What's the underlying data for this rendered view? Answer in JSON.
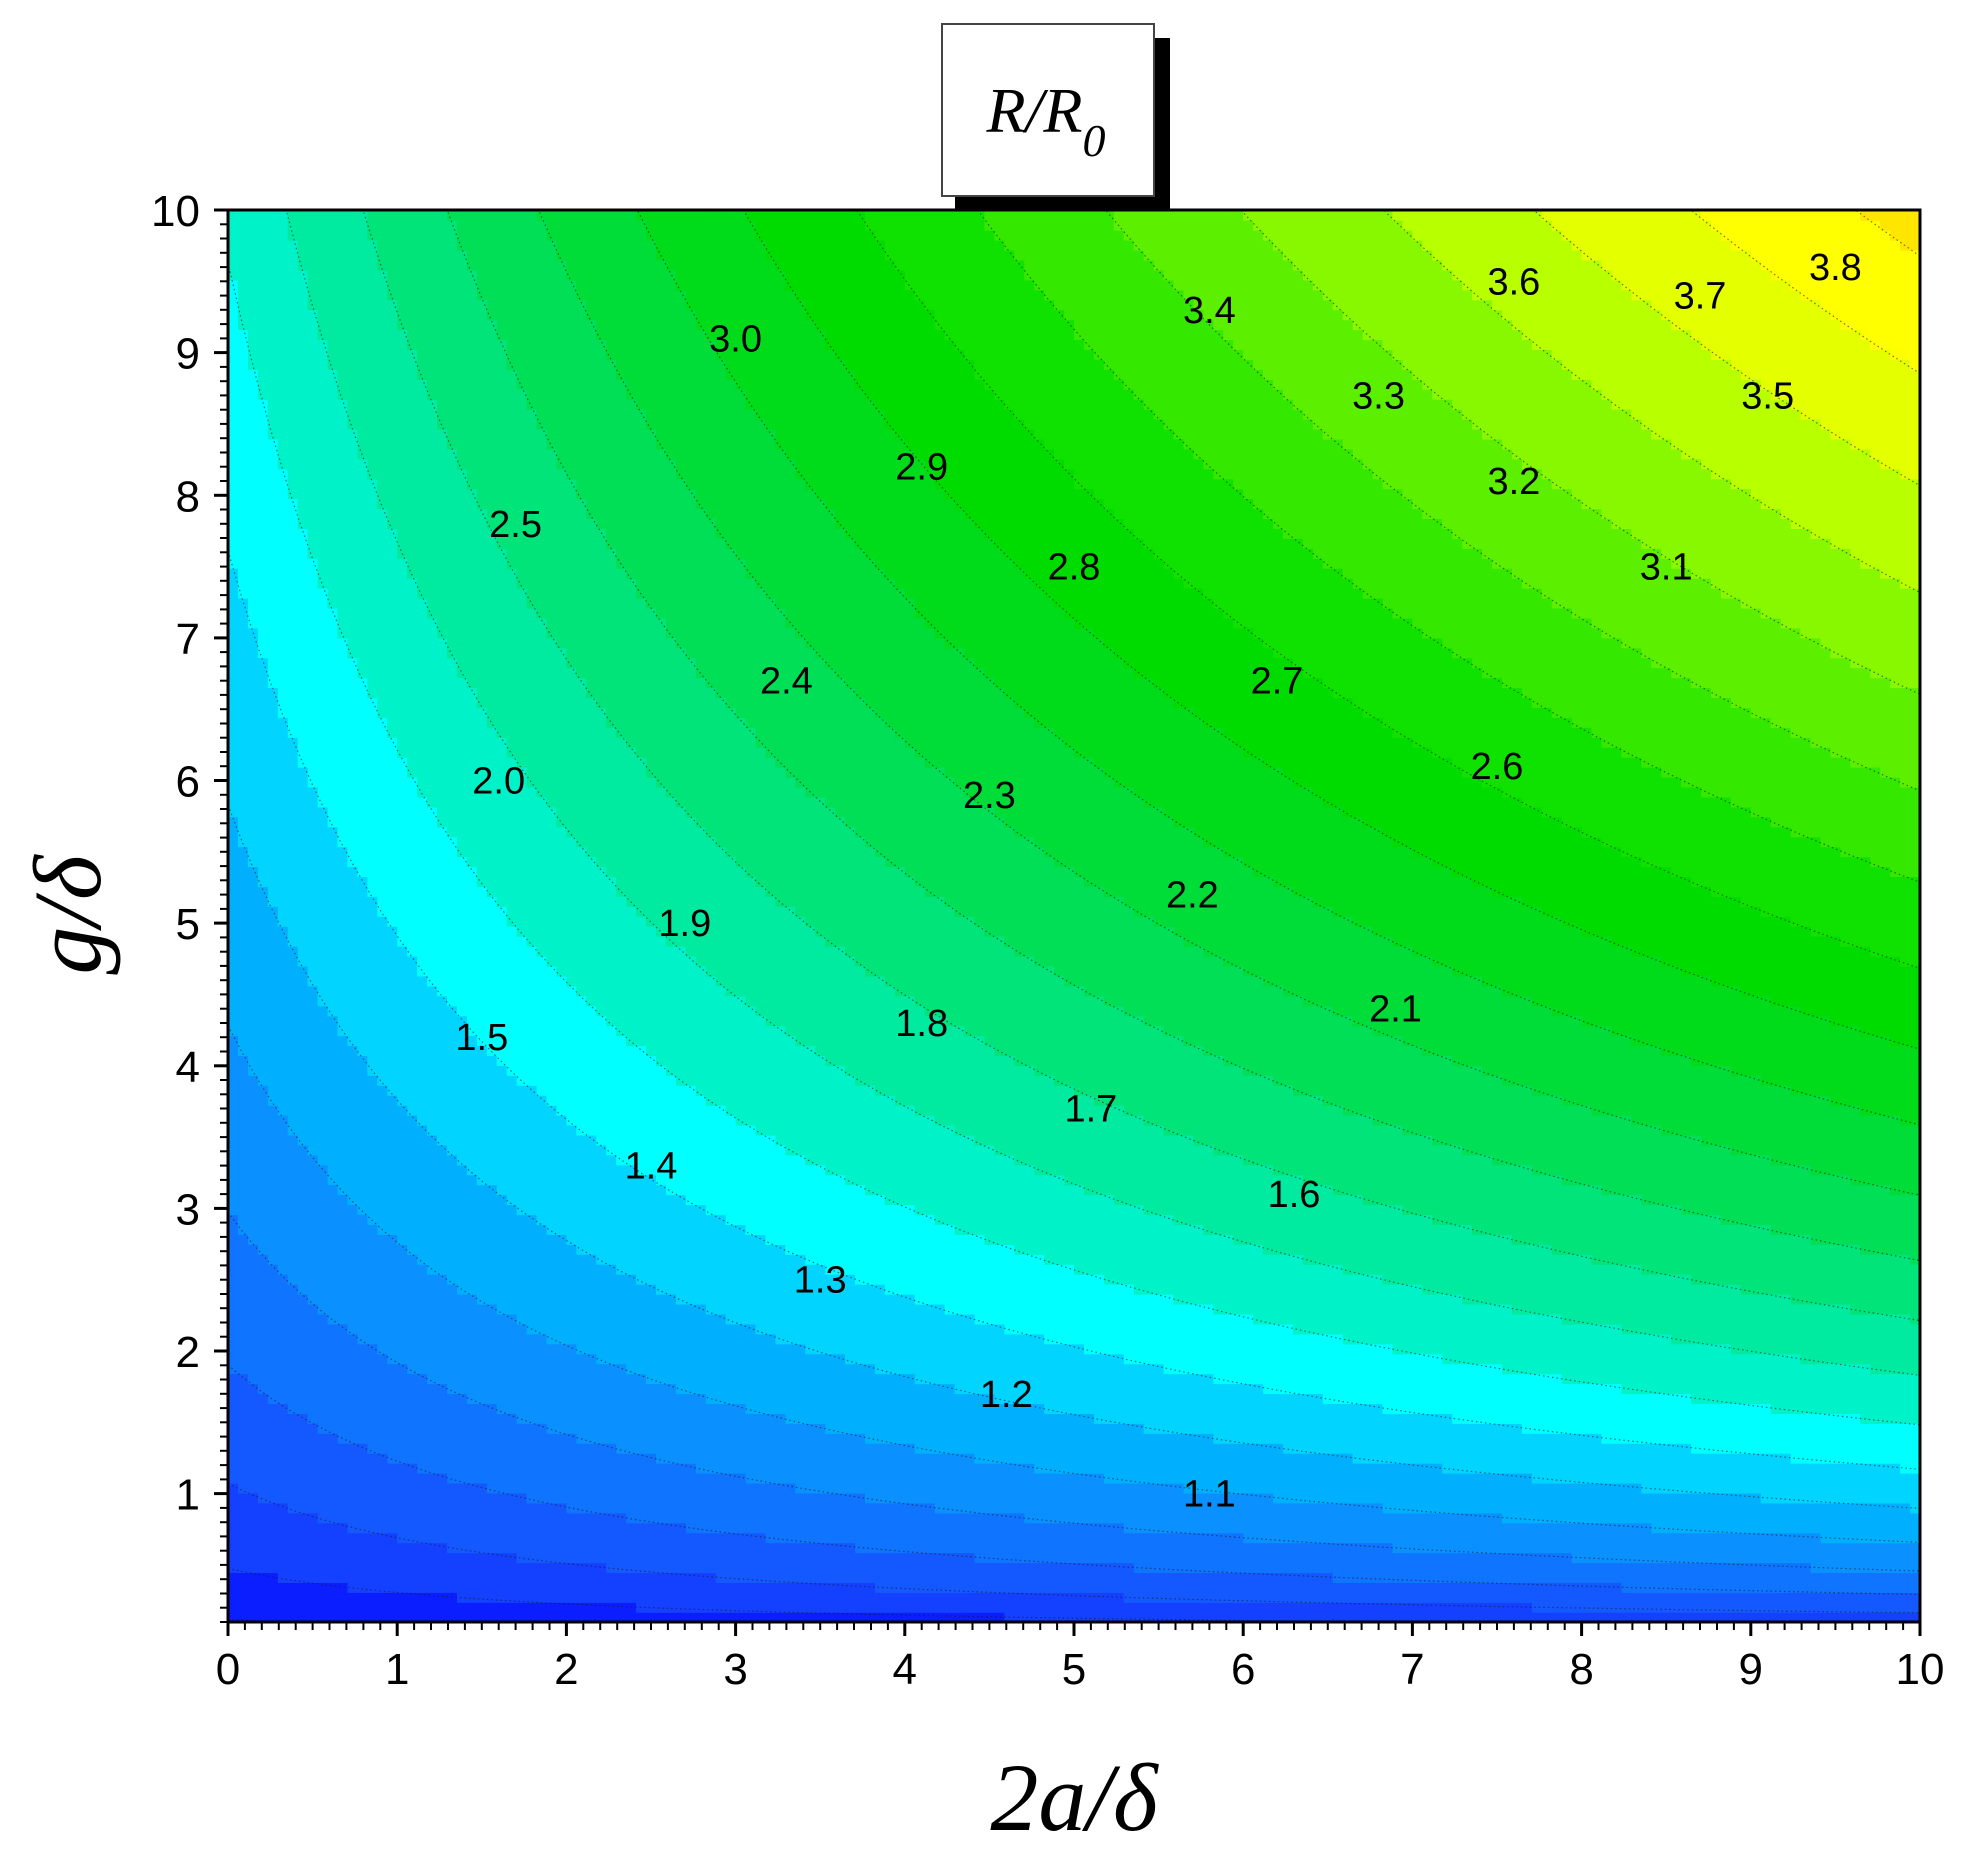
{
  "chart_data": {
    "type": "contour",
    "title": "R/R",
    "title_subscript": "0",
    "xlabel": "2a/δ",
    "ylabel": "g/δ",
    "xlim": [
      0,
      10
    ],
    "ylim": [
      0.1,
      10
    ],
    "x_ticks": [
      "0",
      "1",
      "2",
      "3",
      "4",
      "5",
      "6",
      "7",
      "8",
      "9",
      "10"
    ],
    "y_ticks": [
      "1",
      "2",
      "3",
      "4",
      "5",
      "6",
      "7",
      "8",
      "9",
      "10"
    ],
    "levels": [
      1.1,
      1.2,
      1.3,
      1.4,
      1.5,
      1.6,
      1.7,
      1.8,
      1.9,
      2.0,
      2.1,
      2.2,
      2.3,
      2.4,
      2.5,
      2.6,
      2.7,
      2.8,
      2.9,
      3.0,
      3.1,
      3.2,
      3.3,
      3.4,
      3.5,
      3.6,
      3.7,
      3.8
    ],
    "level_colors": [
      "#0000ff",
      "#0a1eff",
      "#1440ff",
      "#1458ff",
      "#0f74ff",
      "#0a90ff",
      "#00b0ff",
      "#00d4ff",
      "#00ffff",
      "#00f2c8",
      "#00eba0",
      "#00e47a",
      "#00df56",
      "#00dc38",
      "#00db1a",
      "#00dc00",
      "#10e200",
      "#34e800",
      "#5cf000",
      "#88f800",
      "#b8ff00",
      "#e4ff00",
      "#ffff00",
      "#ffe600",
      "#ffc800",
      "#ffa800",
      "#ff8400",
      "#ff5c00",
      "#ff2000"
    ],
    "contour_labels": [
      {
        "text": "1.1",
        "x": 5.8,
        "y": 1.0
      },
      {
        "text": "1.2",
        "x": 4.6,
        "y": 1.7
      },
      {
        "text": "1.3",
        "x": 3.5,
        "y": 2.5
      },
      {
        "text": "1.4",
        "x": 2.5,
        "y": 3.3
      },
      {
        "text": "1.5",
        "x": 1.5,
        "y": 4.2
      },
      {
        "text": "1.6",
        "x": 6.3,
        "y": 3.1
      },
      {
        "text": "1.7",
        "x": 5.1,
        "y": 3.7
      },
      {
        "text": "1.8",
        "x": 4.1,
        "y": 4.3
      },
      {
        "text": "1.9",
        "x": 2.7,
        "y": 5.0
      },
      {
        "text": "2.0",
        "x": 1.6,
        "y": 6.0
      },
      {
        "text": "2.1",
        "x": 6.9,
        "y": 4.4
      },
      {
        "text": "2.2",
        "x": 5.7,
        "y": 5.2
      },
      {
        "text": "2.3",
        "x": 4.5,
        "y": 5.9
      },
      {
        "text": "2.4",
        "x": 3.3,
        "y": 6.7
      },
      {
        "text": "2.5",
        "x": 1.7,
        "y": 7.8
      },
      {
        "text": "2.6",
        "x": 7.5,
        "y": 6.1
      },
      {
        "text": "2.7",
        "x": 6.2,
        "y": 6.7
      },
      {
        "text": "2.8",
        "x": 5.0,
        "y": 7.5
      },
      {
        "text": "2.9",
        "x": 4.1,
        "y": 8.2
      },
      {
        "text": "3.0",
        "x": 3.0,
        "y": 9.1
      },
      {
        "text": "3.1",
        "x": 8.5,
        "y": 7.5
      },
      {
        "text": "3.2",
        "x": 7.6,
        "y": 8.1
      },
      {
        "text": "3.3",
        "x": 6.8,
        "y": 8.7
      },
      {
        "text": "3.4",
        "x": 5.8,
        "y": 9.3
      },
      {
        "text": "3.5",
        "x": 9.1,
        "y": 8.7
      },
      {
        "text": "3.6",
        "x": 7.6,
        "y": 9.5
      },
      {
        "text": "3.7",
        "x": 8.7,
        "y": 9.4
      },
      {
        "text": "3.8",
        "x": 9.5,
        "y": 9.6
      }
    ]
  }
}
